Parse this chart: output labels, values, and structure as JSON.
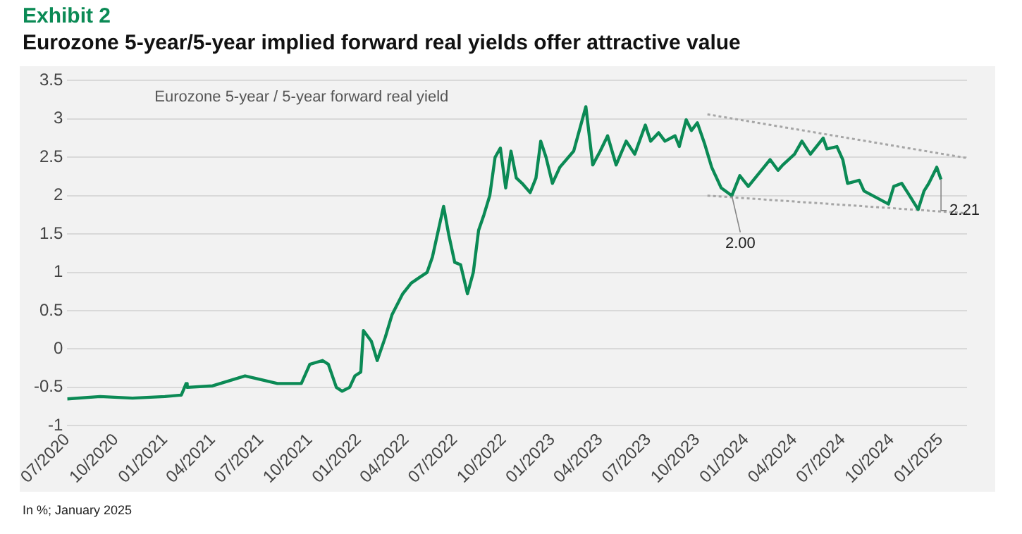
{
  "chart_data": {
    "type": "line",
    "title": "Exhibit 2",
    "subtitle": "Eurozone 5-year/5-year implied forward real yields offer attractive value",
    "xlim": [
      "2020-07-01",
      "2025-02-20"
    ],
    "xticks": [
      {
        "value": "2020-07",
        "label": "07/2020"
      },
      {
        "value": "2020-10",
        "label": "10/2020"
      },
      {
        "value": "2021-01",
        "label": "01/2021"
      },
      {
        "value": "2021-04",
        "label": "04/2021"
      },
      {
        "value": "2021-07",
        "label": "07/2021"
      },
      {
        "value": "2021-10",
        "label": "10/2021"
      },
      {
        "value": "2022-01",
        "label": "01/2022"
      },
      {
        "value": "2022-04",
        "label": "04/2022"
      },
      {
        "value": "2022-07",
        "label": "07/2022"
      },
      {
        "value": "2022-10",
        "label": "10/2022"
      },
      {
        "value": "2023-01",
        "label": "01/2023"
      },
      {
        "value": "2023-04",
        "label": "04/2023"
      },
      {
        "value": "2023-07",
        "label": "07/2023"
      },
      {
        "value": "2023-10",
        "label": "10/2023"
      },
      {
        "value": "2024-01",
        "label": "01/2024"
      },
      {
        "value": "2024-04",
        "label": "04/2024"
      },
      {
        "value": "2024-07",
        "label": "07/2024"
      },
      {
        "value": "2024-10",
        "label": "10/2024"
      },
      {
        "value": "2025-01",
        "label": "01/2025"
      }
    ],
    "ylim": [
      -1,
      3.5
    ],
    "yticks": [
      -1,
      -0.5,
      0,
      0.5,
      1,
      1.5,
      2,
      2.5,
      3,
      3.5
    ],
    "grid": "y",
    "legend": false,
    "marker": "none",
    "series": [
      {
        "name": "Eurozone 5-year / 5-year forward real yield",
        "color": "#0b8a55",
        "x": [
          "2020-07-01",
          "2020-09-01",
          "2020-11-01",
          "2021-01-01",
          "2021-02-01",
          "2021-02-10",
          "2021-02-12",
          "2021-04-01",
          "2021-06-01",
          "2021-07-01",
          "2021-08-01",
          "2021-09-15",
          "2021-10-01",
          "2021-10-25",
          "2021-11-05",
          "2021-11-20",
          "2021-12-01",
          "2021-12-15",
          "2021-12-25",
          "2022-01-05",
          "2022-01-10",
          "2022-01-25",
          "2022-02-05",
          "2022-02-20",
          "2022-03-05",
          "2022-03-25",
          "2022-04-10",
          "2022-04-25",
          "2022-05-10",
          "2022-05-20",
          "2022-06-10",
          "2022-06-20",
          "2022-07-01",
          "2022-07-12",
          "2022-07-25",
          "2022-08-05",
          "2022-08-15",
          "2022-08-25",
          "2022-09-05",
          "2022-09-15",
          "2022-09-25",
          "2022-10-05",
          "2022-10-15",
          "2022-10-25",
          "2022-11-05",
          "2022-11-20",
          "2022-12-01",
          "2022-12-10",
          "2022-12-20",
          "2023-01-01",
          "2023-01-15",
          "2023-02-10",
          "2023-03-05",
          "2023-03-18",
          "2023-04-01",
          "2023-04-15",
          "2023-05-01",
          "2023-05-20",
          "2023-06-05",
          "2023-06-25",
          "2023-07-05",
          "2023-07-20",
          "2023-08-01",
          "2023-08-20",
          "2023-08-28",
          "2023-09-10",
          "2023-09-20",
          "2023-10-01",
          "2023-10-15",
          "2023-10-28",
          "2023-11-15",
          "2023-12-05",
          "2023-12-20",
          "2024-01-05",
          "2024-02-15",
          "2024-03-01",
          "2024-03-10",
          "2024-04-01",
          "2024-04-15",
          "2024-05-01",
          "2024-05-25",
          "2024-06-01",
          "2024-06-20",
          "2024-07-01",
          "2024-07-10",
          "2024-08-01",
          "2024-08-10",
          "2024-09-25",
          "2024-10-05",
          "2024-10-20",
          "2024-11-01",
          "2024-11-20",
          "2024-12-01",
          "2024-12-10",
          "2024-12-25",
          "2025-01-02"
        ],
        "values": [
          -0.65,
          -0.62,
          -0.64,
          -0.62,
          -0.6,
          -0.45,
          -0.5,
          -0.48,
          -0.35,
          -0.4,
          -0.45,
          -0.45,
          -0.2,
          -0.15,
          -0.2,
          -0.5,
          -0.55,
          -0.5,
          -0.35,
          -0.3,
          0.24,
          0.1,
          -0.15,
          0.15,
          0.45,
          0.72,
          0.86,
          0.93,
          1.0,
          1.2,
          1.86,
          1.48,
          1.13,
          1.1,
          0.72,
          1.0,
          1.55,
          1.75,
          2.0,
          2.5,
          2.62,
          2.1,
          2.58,
          2.23,
          2.16,
          2.04,
          2.23,
          2.71,
          2.5,
          2.16,
          2.37,
          2.58,
          3.16,
          2.4,
          2.58,
          2.78,
          2.4,
          2.71,
          2.54,
          2.92,
          2.71,
          2.82,
          2.71,
          2.78,
          2.64,
          2.99,
          2.85,
          2.95,
          2.67,
          2.37,
          2.1,
          2.0,
          2.26,
          2.12,
          2.47,
          2.33,
          2.4,
          2.54,
          2.71,
          2.54,
          2.75,
          2.61,
          2.64,
          2.47,
          2.16,
          2.2,
          2.06,
          1.89,
          2.12,
          2.16,
          2.03,
          1.82,
          2.06,
          2.16,
          2.37,
          2.21
        ]
      },
      {
        "type": "line",
        "color": "#a6a6a6",
        "line_style": "dotted",
        "x": [
          "2023-10-20",
          "2025-02-20"
        ],
        "values": [
          3.06,
          2.49
        ]
      },
      {
        "type": "line",
        "color": "#a6a6a6",
        "line_style": "dotted",
        "x": [
          "2023-10-20",
          "2025-02-20"
        ],
        "values": [
          2.0,
          1.77
        ]
      }
    ],
    "annotations": [
      {
        "text": "2.00",
        "x": "2023-12-05",
        "y": 2.0
      },
      {
        "text": "2.21",
        "x": "2025-01-02",
        "y": 2.21
      },
      "In %; January 2025"
    ]
  }
}
